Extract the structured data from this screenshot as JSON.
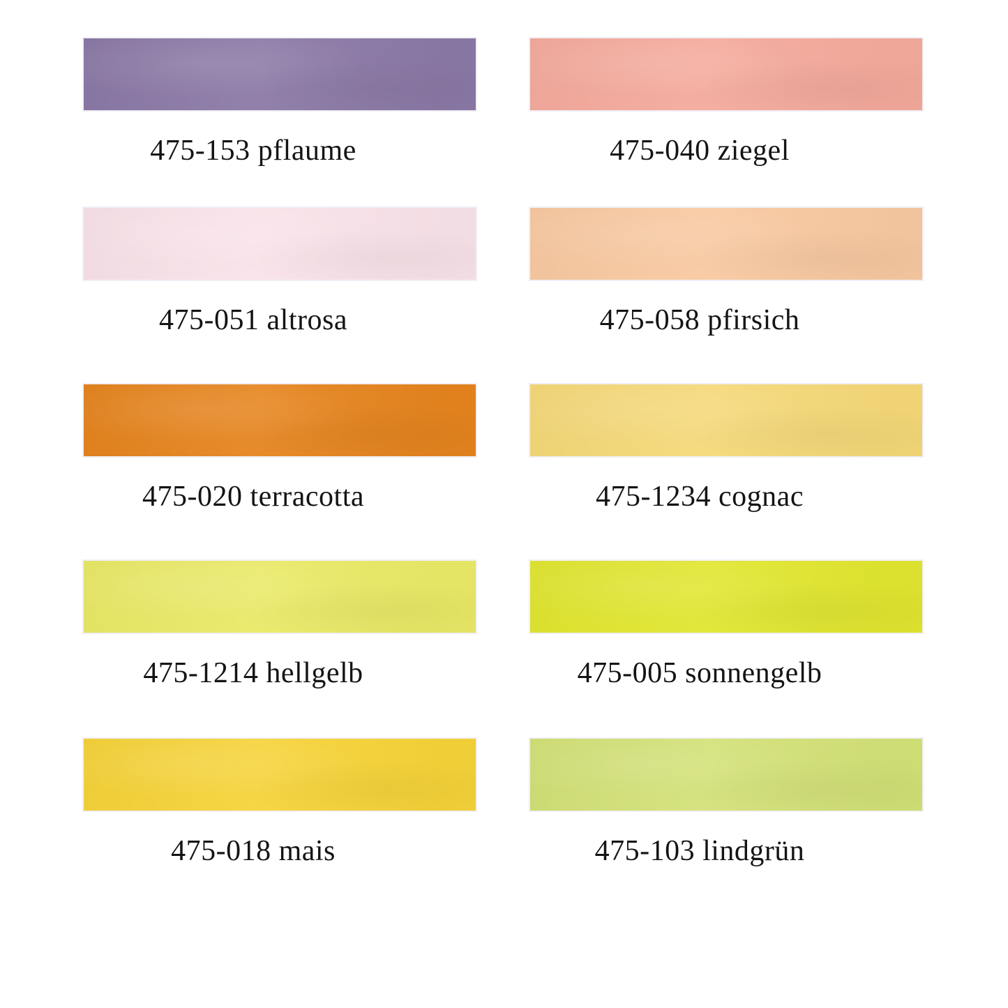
{
  "page": {
    "background": "#ffffff",
    "text_color": "#141414"
  },
  "swatches": [
    {
      "code": "475-153",
      "name": "pflaume",
      "color": "#8b79a6"
    },
    {
      "code": "475-040",
      "name": "ziegel",
      "color": "#f4aa9c"
    },
    {
      "code": "475-051",
      "name": "altrosa",
      "color": "#f9e2e9"
    },
    {
      "code": "475-058",
      "name": "pfirsich",
      "color": "#f8c9a1"
    },
    {
      "code": "475-020",
      "name": "terracotta",
      "color": "#e5841e"
    },
    {
      "code": "475-1234",
      "name": "cognac",
      "color": "#f5d878"
    },
    {
      "code": "475-1214",
      "name": "hellgelb",
      "color": "#e9e967"
    },
    {
      "code": "475-005",
      "name": "sonnengelb",
      "color": "#e1e630"
    },
    {
      "code": "475-018",
      "name": "mais",
      "color": "#f6d339"
    },
    {
      "code": "475-103",
      "name": "lindgrün",
      "color": "#d3e177"
    }
  ]
}
